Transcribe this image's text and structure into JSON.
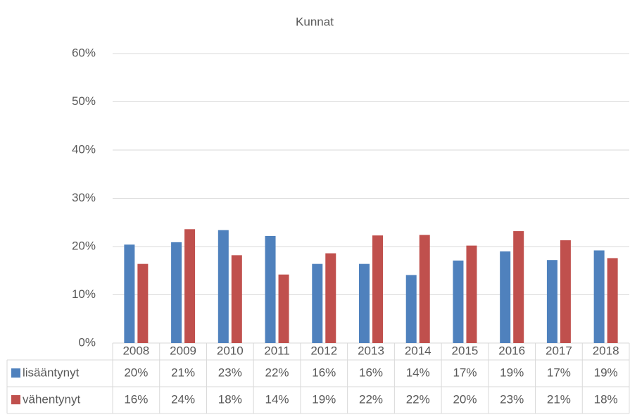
{
  "chart_data": {
    "type": "bar",
    "title": "Kunnat",
    "categories": [
      "2008",
      "2009",
      "2010",
      "2011",
      "2012",
      "2013",
      "2014",
      "2015",
      "2016",
      "2017",
      "2018"
    ],
    "series": [
      {
        "name": "lisääntynyt",
        "color": "#4f81bd",
        "values": [
          20.4,
          20.9,
          23.4,
          22.2,
          16.4,
          16.4,
          14.1,
          17.1,
          19.0,
          17.2,
          19.2
        ],
        "value_labels": [
          "20%",
          "21%",
          "23%",
          "22%",
          "16%",
          "16%",
          "14%",
          "17%",
          "19%",
          "17%",
          "19%"
        ]
      },
      {
        "name": "vähentynyt",
        "color": "#c0504d",
        "values": [
          16.4,
          23.6,
          18.2,
          14.2,
          18.6,
          22.3,
          22.4,
          20.2,
          23.2,
          21.3,
          17.6
        ],
        "value_labels": [
          "16%",
          "24%",
          "18%",
          "14%",
          "19%",
          "22%",
          "22%",
          "20%",
          "23%",
          "21%",
          "18%"
        ]
      }
    ],
    "ylim": [
      0,
      60
    ],
    "yticks": [
      {
        "value": 0,
        "label": "0%"
      },
      {
        "value": 10,
        "label": "10%"
      },
      {
        "value": 20,
        "label": "20%"
      },
      {
        "value": 30,
        "label": "30%"
      },
      {
        "value": 40,
        "label": "40%"
      },
      {
        "value": 50,
        "label": "50%"
      },
      {
        "value": 60,
        "label": "60%"
      }
    ],
    "grid": true
  }
}
